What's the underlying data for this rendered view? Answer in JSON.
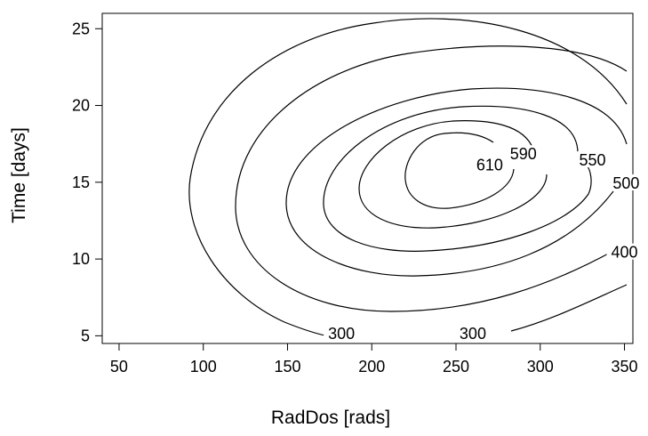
{
  "chart_data": {
    "type": "contour",
    "xlabel": "RadDos [rads]",
    "ylabel": "Time [days]",
    "xlim": [
      40,
      355
    ],
    "ylim": [
      4.5,
      26
    ],
    "x_ticks": [
      50,
      100,
      150,
      200,
      250,
      300,
      350
    ],
    "y_ticks": [
      5,
      10,
      15,
      20,
      25
    ],
    "x_tick_labels": [
      "50",
      "100",
      "150",
      "200",
      "250",
      "300",
      "350"
    ],
    "y_tick_labels": [
      "5",
      "10",
      "15",
      "20",
      "25"
    ],
    "contours": [
      {
        "level": 610,
        "label": "610",
        "label_pos": [
          270,
          15.9
        ]
      },
      {
        "level": 590,
        "label": "590",
        "label_pos": [
          290,
          16.6
        ]
      },
      {
        "level": 550,
        "label": "550",
        "label_pos": [
          331,
          16.2
        ]
      },
      {
        "level": 500,
        "label": "500",
        "label_pos": [
          351,
          14.7
        ]
      },
      {
        "level": 400,
        "label": "400",
        "label_pos": [
          350,
          10.2
        ]
      },
      {
        "level": 300,
        "label": "300",
        "label_pos": [
          182,
          4.9
        ]
      },
      {
        "level": 300,
        "label": "300",
        "label_pos": [
          260,
          4.9
        ]
      }
    ]
  }
}
